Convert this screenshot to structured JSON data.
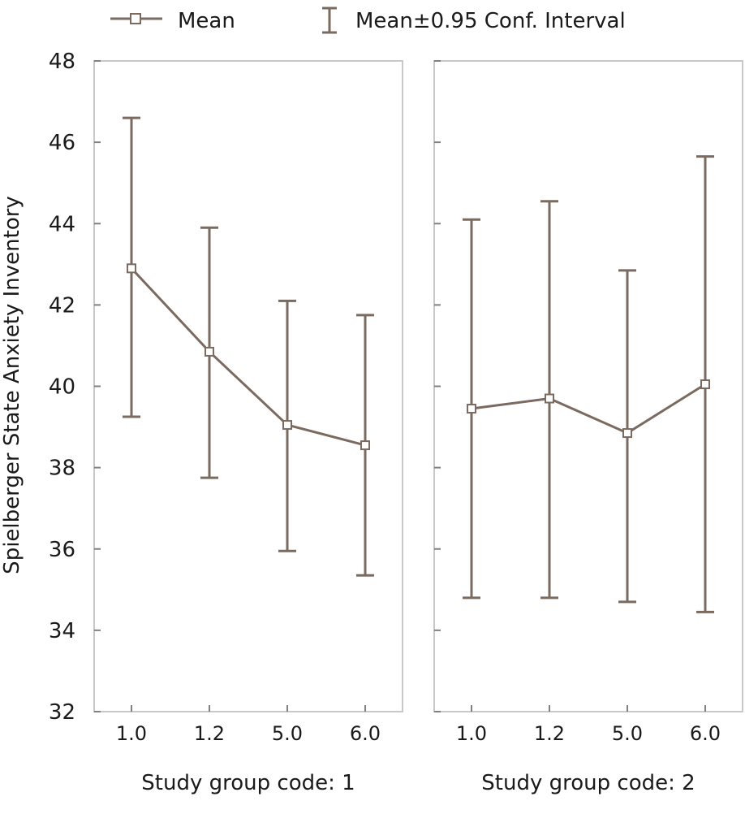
{
  "chart_data": {
    "type": "line",
    "ylabel": "Spielberger State Anxiety Inventory",
    "ylim": [
      32,
      48
    ],
    "yticks": [
      32,
      34,
      36,
      38,
      40,
      42,
      44,
      46,
      48
    ],
    "grid": false,
    "legend": {
      "placement": "top",
      "mean_label": "Mean",
      "ci_label": "Mean±0.95 Conf. Interval"
    },
    "colors": {
      "line": "#7a6a5f",
      "frame": "#c8c8c8",
      "tick": "#808080",
      "text": "#1a1a1a"
    },
    "categories": [
      "1.0",
      "1.2",
      "5.0",
      "6.0"
    ],
    "panels": [
      {
        "title": "Study group code: 1",
        "mean": [
          42.9,
          40.85,
          39.05,
          38.55
        ],
        "ci_low": [
          39.25,
          37.75,
          35.95,
          35.35
        ],
        "ci_high": [
          46.6,
          43.9,
          42.1,
          41.75
        ]
      },
      {
        "title": "Study group code: 2",
        "mean": [
          39.45,
          39.7,
          38.85,
          40.05
        ],
        "ci_low": [
          34.8,
          34.8,
          34.7,
          34.45
        ],
        "ci_high": [
          44.1,
          44.55,
          42.85,
          45.65
        ]
      }
    ]
  }
}
